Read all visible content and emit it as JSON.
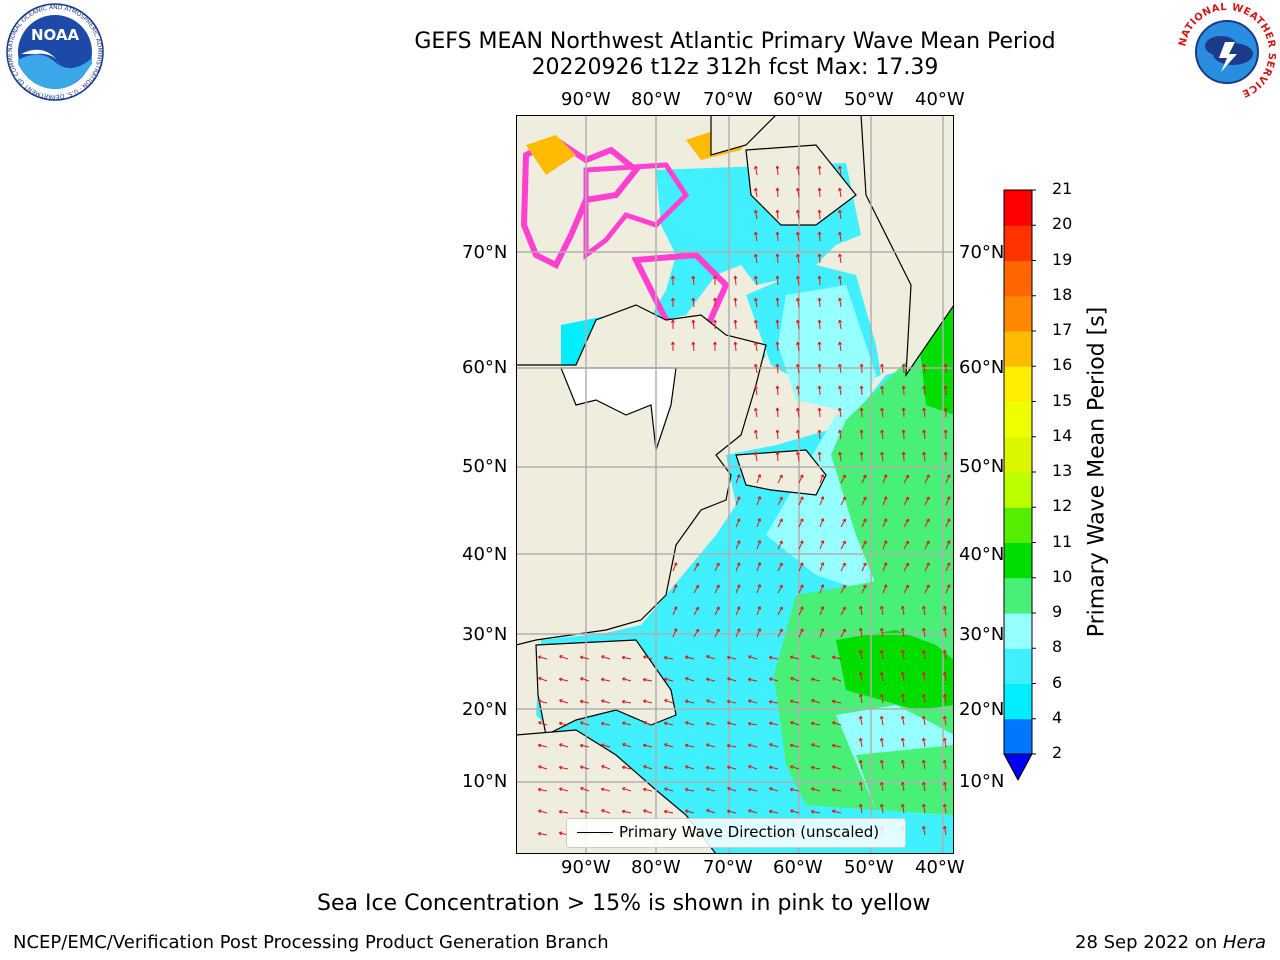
{
  "header": {
    "title_line1": "GEFS MEAN Northwest Atlantic Primary Wave Mean Period",
    "title_line2": "20220926 t12z 312h fcst   Max: 17.39"
  },
  "logos": {
    "left_text": "NOAA",
    "left_ring": "NATIONAL OCEANIC AND ATMOSPHERIC ADMINISTRATION · U.S. DEPARTMENT OF COMMERCE",
    "right_ring": "NATIONAL WEATHER SERVICE"
  },
  "map": {
    "lon_labels": [
      "90°W",
      "80°W",
      "70°W",
      "60°W",
      "50°W",
      "40°W"
    ],
    "lat_labels": [
      "70°N",
      "60°N",
      "50°N",
      "40°N",
      "30°N",
      "20°N",
      "10°N"
    ],
    "legend_label": "Primary Wave Direction (unscaled)",
    "colors": {
      "land": "#efedde",
      "grid": "#b0b0b0",
      "arrow": "#e01818",
      "ice": "#ff40d0"
    }
  },
  "colorbar": {
    "title": "Primary Wave Mean Period [s]",
    "ticks": [
      "2",
      "4",
      "6",
      "8",
      "9",
      "10",
      "11",
      "12",
      "13",
      "14",
      "15",
      "16",
      "17",
      "18",
      "19",
      "20",
      "21"
    ],
    "colors": [
      "#0077ff",
      "#00eeff",
      "#40f0ff",
      "#96ffff",
      "#48f078",
      "#00dd00",
      "#55ee00",
      "#bbff00",
      "#dcf600",
      "#eeff00",
      "#ffee00",
      "#ffbb00",
      "#ff8800",
      "#ff6600",
      "#ff3300",
      "#ff0000"
    ],
    "extend_color": "#0000ee"
  },
  "note": "Sea Ice Concentration > 15% is shown in pink to yellow",
  "footer": {
    "left": "NCEP/EMC/Verification Post Processing Product Generation Branch",
    "date": "28 Sep 2022 on ",
    "machine": "Hera"
  }
}
